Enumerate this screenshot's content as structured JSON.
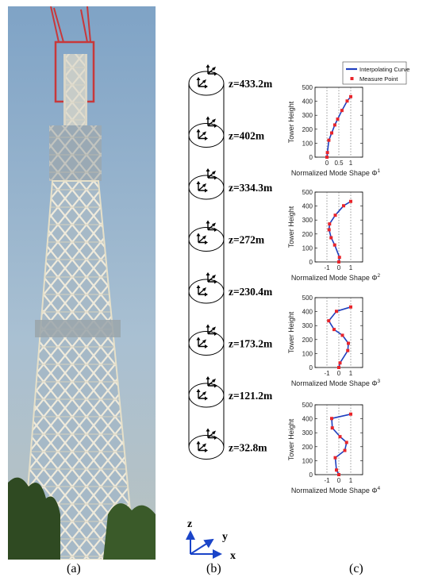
{
  "captions": {
    "a": "(a)",
    "b": "(b)",
    "c": "(c)"
  },
  "schematic": {
    "levels": [
      "z=433.2m",
      "z=402m",
      "z=334.3m",
      "z=272m",
      "z=230.4m",
      "z=173.2m",
      "z=121.2m",
      "z=32.8m"
    ],
    "axes": {
      "z": "z",
      "y": "y",
      "x": "x"
    },
    "axes_color": "#1a44c8"
  },
  "colors": {
    "curve": "#1f3fbf",
    "points": "#e8252b",
    "sky": "#8fb0cf",
    "tower": "#e9e6d2"
  },
  "legend": {
    "curve": "Interpolating Curve",
    "points": "Measure Point"
  },
  "chart_data": [
    {
      "type": "line",
      "ylabel": "Tower Height",
      "xlabel": "Normalized Mode Shape Φ",
      "mode": "1",
      "ylim": [
        0,
        500
      ],
      "yticks": [
        "0",
        "100",
        "200",
        "300",
        "400",
        "500"
      ],
      "xlim": [
        -0.5,
        1.5
      ],
      "xticks": [
        {
          "v": 0,
          "label": "0"
        },
        {
          "v": 0.5,
          "label": "0.5"
        },
        {
          "v": 1,
          "label": "1"
        }
      ],
      "heights": [
        32.8,
        121.2,
        173.2,
        230.4,
        272,
        334.3,
        402,
        433.2
      ],
      "series": [
        {
          "name": "Interpolating Curve",
          "values": [
            0.02,
            0.08,
            0.2,
            0.33,
            0.45,
            0.63,
            0.85,
            1.0
          ]
        },
        {
          "name": "Measure Point",
          "values": [
            0.02,
            0.08,
            0.2,
            0.33,
            0.45,
            0.63,
            0.85,
            1.0
          ]
        }
      ]
    },
    {
      "type": "line",
      "ylabel": "Tower Height",
      "xlabel": "Normalized Mode Shape Φ",
      "mode": "2",
      "ylim": [
        0,
        500
      ],
      "yticks": [
        "0",
        "100",
        "200",
        "300",
        "400",
        "500"
      ],
      "xlim": [
        -2,
        2
      ],
      "xticks": [
        {
          "v": -1,
          "label": "-1"
        },
        {
          "v": 0,
          "label": "0"
        },
        {
          "v": 1,
          "label": "1"
        }
      ],
      "heights": [
        32.8,
        121.2,
        173.2,
        230.4,
        272,
        334.3,
        402,
        433.2
      ],
      "series": [
        {
          "name": "Interpolating Curve",
          "values": [
            0.05,
            -0.35,
            -0.65,
            -0.82,
            -0.78,
            -0.3,
            0.4,
            1.0
          ]
        },
        {
          "name": "Measure Point",
          "values": [
            0.05,
            -0.35,
            -0.65,
            -0.82,
            -0.78,
            -0.3,
            0.4,
            1.0
          ]
        }
      ]
    },
    {
      "type": "line",
      "ylabel": "Tower Height",
      "xlabel": "Normalized Mode Shape Φ",
      "mode": "3",
      "ylim": [
        0,
        500
      ],
      "yticks": [
        "0",
        "100",
        "200",
        "300",
        "400",
        "500"
      ],
      "xlim": [
        -2,
        2
      ],
      "xticks": [
        {
          "v": -1,
          "label": "-1"
        },
        {
          "v": 0,
          "label": "0"
        },
        {
          "v": 1,
          "label": "1"
        }
      ],
      "heights": [
        32.8,
        121.2,
        173.2,
        230.4,
        272,
        334.3,
        402,
        433.2
      ],
      "series": [
        {
          "name": "Interpolating Curve",
          "values": [
            0.1,
            0.75,
            0.8,
            0.3,
            -0.4,
            -0.85,
            -0.2,
            1.0
          ]
        },
        {
          "name": "Measure Point",
          "values": [
            0.1,
            0.75,
            0.8,
            0.3,
            -0.4,
            -0.85,
            -0.2,
            1.0
          ]
        }
      ]
    },
    {
      "type": "line",
      "ylabel": "Tower Height",
      "xlabel": "Normalized Mode Shape Φ",
      "mode": "4",
      "ylim": [
        0,
        500
      ],
      "yticks": [
        "0",
        "100",
        "200",
        "300",
        "400",
        "500"
      ],
      "xlim": [
        -2,
        2
      ],
      "xticks": [
        {
          "v": -1,
          "label": "-1"
        },
        {
          "v": 0,
          "label": "0"
        },
        {
          "v": 1,
          "label": "1"
        }
      ],
      "heights": [
        32.8,
        121.2,
        173.2,
        230.4,
        272,
        334.3,
        402,
        433.2
      ],
      "series": [
        {
          "name": "Interpolating Curve",
          "values": [
            -0.2,
            -0.3,
            0.5,
            0.65,
            0.1,
            -0.55,
            -0.6,
            1.0
          ]
        },
        {
          "name": "Measure Point",
          "values": [
            -0.2,
            -0.3,
            0.5,
            0.65,
            0.1,
            -0.55,
            -0.6,
            1.0
          ]
        }
      ]
    }
  ]
}
